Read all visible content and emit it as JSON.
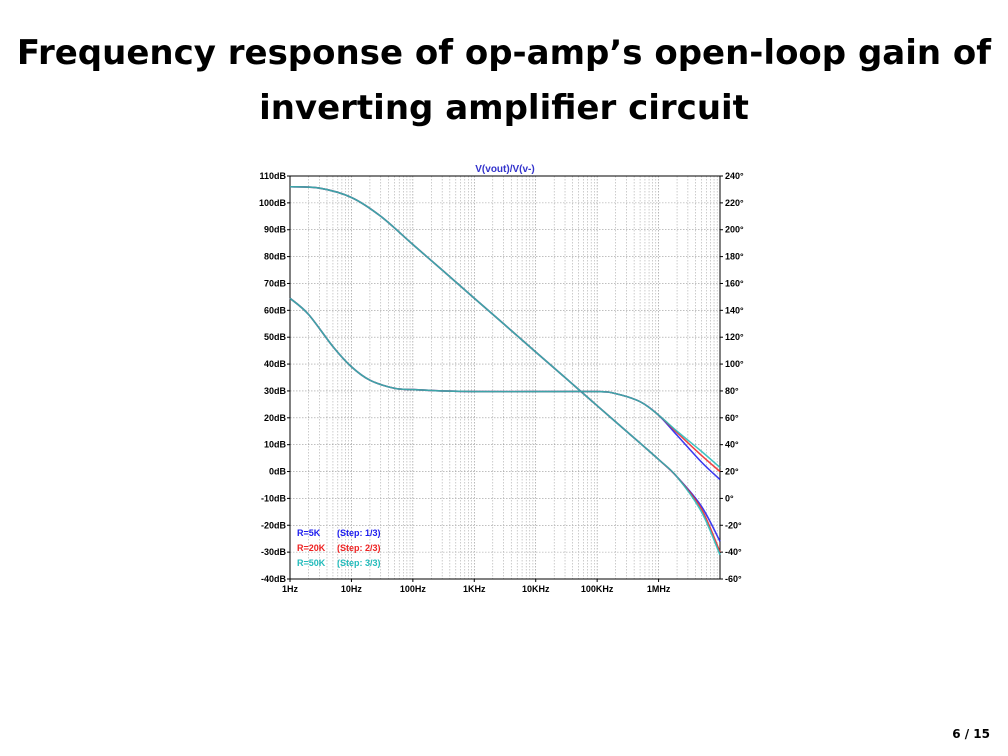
{
  "slide": {
    "title_line1": "Frequency response of op-amp’s open-loop gain of",
    "title_line2": "inverting amplifier circuit",
    "page_number": "6 / 15"
  },
  "chart_data": {
    "type": "line",
    "title": "V(vout)/V(v-)",
    "title_color": "#3333cc",
    "x_scale": "log",
    "xlim": [
      1,
      10000000
    ],
    "x_ticks": [
      1,
      10,
      100,
      1000,
      10000,
      100000,
      1000000
    ],
    "x_tick_labels": [
      "1Hz",
      "10Hz",
      "100Hz",
      "1KHz",
      "10KHz",
      "100KHz",
      "1MHz"
    ],
    "ylim": [
      -40,
      110
    ],
    "y_ticks": [
      110,
      100,
      90,
      80,
      70,
      60,
      50,
      40,
      30,
      20,
      10,
      0,
      -10,
      -20,
      -30,
      -40
    ],
    "y_tick_labels": [
      "110dB",
      "100dB",
      "90dB",
      "80dB",
      "70dB",
      "60dB",
      "50dB",
      "40dB",
      "30dB",
      "20dB",
      "10dB",
      "0dB",
      "-10dB",
      "-20dB",
      "-30dB",
      "-40dB"
    ],
    "y2lim": [
      -60,
      240
    ],
    "y2_ticks": [
      240,
      220,
      200,
      180,
      160,
      140,
      120,
      100,
      80,
      60,
      40,
      20,
      0,
      -20,
      -40,
      -60
    ],
    "y2_tick_labels": [
      "240°",
      "220°",
      "200°",
      "180°",
      "160°",
      "140°",
      "120°",
      "100°",
      "80°",
      "60°",
      "40°",
      "20°",
      "0°",
      "-20°",
      "-40°",
      "-60°"
    ],
    "grid": true,
    "legend_position": "bottom-left",
    "legend": [
      {
        "label": "R=5K",
        "step": "(Step: 1/3)",
        "color": "#1a1aee"
      },
      {
        "label": "R=20K",
        "step": "(Step: 2/3)",
        "color": "#ee2222"
      },
      {
        "label": "R=50K",
        "step": "(Step: 3/3)",
        "color": "#22bbbb"
      }
    ],
    "series": [
      {
        "name": "R=5K",
        "color": "#1a1aee",
        "kind": "magnitude",
        "x": [
          1,
          3,
          10,
          30,
          100,
          300,
          1000,
          3000,
          10000,
          30000,
          100000,
          300000,
          1000000,
          2000000,
          5000000,
          10000000
        ],
        "y": [
          106,
          105.5,
          102,
          95,
          84.5,
          75,
          64.5,
          55,
          44.5,
          35,
          24.5,
          15,
          4.5,
          -2,
          -13,
          -26
        ]
      },
      {
        "name": "R=20K",
        "color": "#ee2222",
        "kind": "magnitude",
        "x": [
          1,
          3,
          10,
          30,
          100,
          300,
          1000,
          3000,
          10000,
          30000,
          100000,
          300000,
          1000000,
          2000000,
          5000000,
          10000000
        ],
        "y": [
          106,
          105.5,
          102,
          95,
          84.5,
          75,
          64.5,
          55,
          44.5,
          35,
          24.5,
          15,
          4.5,
          -2,
          -14,
          -30
        ]
      },
      {
        "name": "R=50K",
        "color": "#22bbbb",
        "kind": "magnitude",
        "x": [
          1,
          3,
          10,
          30,
          100,
          300,
          1000,
          3000,
          10000,
          30000,
          100000,
          300000,
          1000000,
          2000000,
          5000000,
          10000000
        ],
        "y": [
          106,
          105.5,
          102,
          95,
          84.5,
          75,
          64.5,
          55,
          44.5,
          35,
          24.5,
          15,
          4.5,
          -2,
          -15,
          -31
        ]
      },
      {
        "name": "R=5K",
        "color": "#1a1aee",
        "kind": "phase",
        "x": [
          1,
          2,
          5,
          10,
          20,
          50,
          100,
          300,
          1000,
          10000,
          100000,
          200000,
          500000,
          1000000,
          2000000,
          5000000,
          10000000
        ],
        "y": [
          149,
          137,
          113,
          98,
          88,
          82,
          81,
          80,
          79.5,
          79.5,
          79.5,
          78,
          72,
          62,
          47,
          27,
          14
        ]
      },
      {
        "name": "R=20K",
        "color": "#ee2222",
        "kind": "phase",
        "x": [
          1,
          2,
          5,
          10,
          20,
          50,
          100,
          300,
          1000,
          10000,
          100000,
          200000,
          500000,
          1000000,
          2000000,
          5000000,
          10000000
        ],
        "y": [
          149,
          137,
          113,
          98,
          88,
          82,
          81,
          80,
          79.5,
          79.5,
          79.5,
          78,
          72,
          62,
          49,
          32,
          20
        ]
      },
      {
        "name": "R=50K",
        "color": "#22bbbb",
        "kind": "phase",
        "x": [
          1,
          2,
          5,
          10,
          20,
          50,
          100,
          300,
          1000,
          10000,
          100000,
          200000,
          500000,
          1000000,
          2000000,
          5000000,
          10000000
        ],
        "y": [
          149,
          137,
          113,
          98,
          88,
          82,
          81,
          80,
          79.5,
          79.5,
          79.5,
          78,
          72,
          62,
          50,
          35,
          23
        ]
      }
    ]
  }
}
